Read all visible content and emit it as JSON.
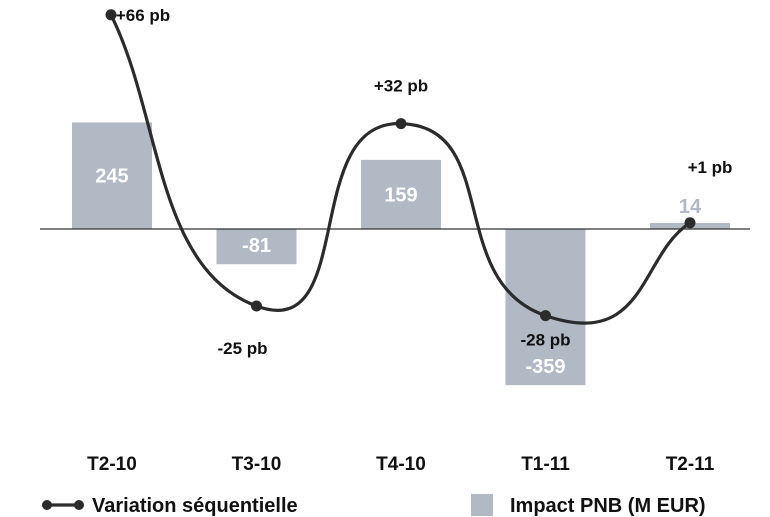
{
  "chart_data": {
    "type": "bar",
    "categories": [
      "T2-10",
      "T3-10",
      "T4-10",
      "T1-11",
      "T2-11"
    ],
    "series": [
      {
        "name": "Impact PNB (M EUR)",
        "type": "bar",
        "values": [
          245,
          -81,
          159,
          -359,
          14
        ],
        "labels": [
          "245",
          "-81",
          "159",
          "-359",
          "14"
        ],
        "color": "#b0b9c4"
      },
      {
        "name": "Variation séquentielle",
        "type": "line",
        "values": [
          66,
          -25,
          32,
          -28,
          1
        ],
        "labels": [
          "+66 pb",
          "-25 pb",
          "+32 pb",
          "-28 pb",
          "+1 pb"
        ],
        "color": "#2b2b2b"
      }
    ],
    "title": "",
    "xlabel": "",
    "ylabel": "",
    "legend_position": "bottom",
    "grid": false,
    "colors": {
      "bar": "#b0b9c4",
      "bar_label_inside": "#ffffff",
      "bar_label_small": "#b0b9c4",
      "line": "#2b2b2b",
      "axis": "#333333"
    }
  }
}
